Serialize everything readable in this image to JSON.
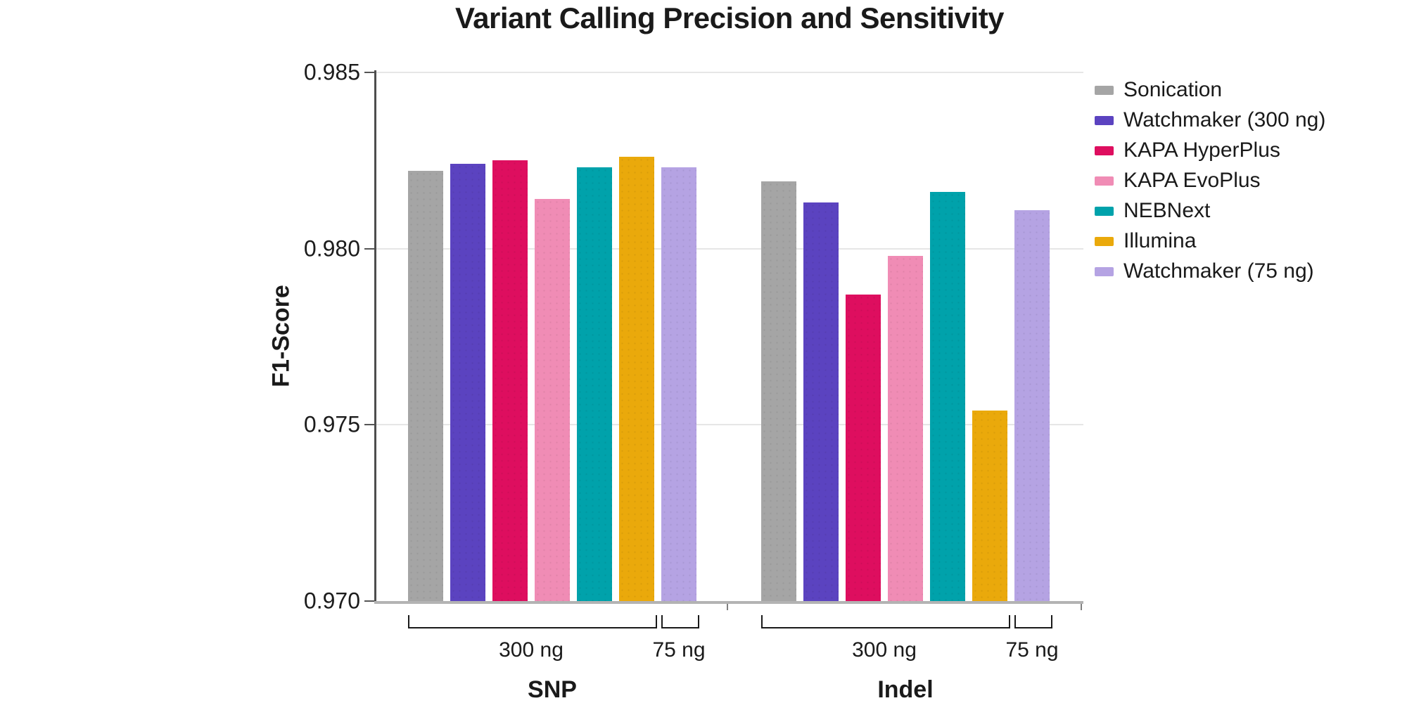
{
  "chart_data": {
    "type": "bar",
    "title": "Variant Calling Precision and Sensitivity",
    "ylabel": "F1-Score",
    "ylim": [
      0.97,
      0.985
    ],
    "yticks": [
      "0.985",
      "0.980",
      "0.975",
      "0.970"
    ],
    "grid": true,
    "legend_position": "right",
    "categories": [
      "SNP",
      "Indel"
    ],
    "series": [
      {
        "name": "Sonication",
        "color": "#A5A5A5",
        "values": [
          0.9822,
          0.9819
        ]
      },
      {
        "name": "Watchmaker (300 ng)",
        "color": "#5B43C0",
        "values": [
          0.9824,
          0.9813
        ]
      },
      {
        "name": "KAPA HyperPlus",
        "color": "#DE0E5F",
        "values": [
          0.9825,
          0.9787
        ]
      },
      {
        "name": "KAPA EvoPlus",
        "color": "#F08CB5",
        "values": [
          0.9814,
          0.9798
        ]
      },
      {
        "name": "NEBNext",
        "color": "#00A2AB",
        "values": [
          0.9823,
          0.9816
        ]
      },
      {
        "name": "Illumina",
        "color": "#EAA90B",
        "values": [
          0.9826,
          0.9754
        ]
      },
      {
        "name": "Watchmaker (75 ng)",
        "color": "#B5A3E3",
        "values": [
          0.9823,
          0.9811
        ]
      }
    ],
    "input_amount_brackets": [
      {
        "label": "300 ng",
        "series_start": 0,
        "series_end": 5
      },
      {
        "label": "75 ng",
        "series_start": 6,
        "series_end": 6
      }
    ]
  }
}
